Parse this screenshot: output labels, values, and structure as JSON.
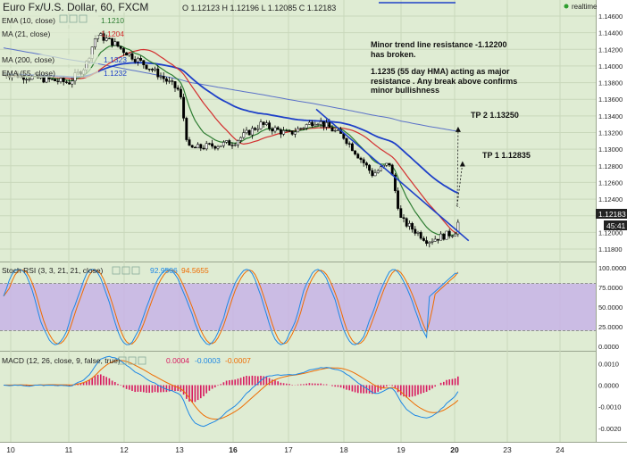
{
  "header": {
    "symbol": "Euro Fx/U.S. Dollar, 60, FXCM",
    "ohlc": "O 1.12123  H 1.12196  L 1.12085  C 1.12183",
    "realtime_label": "realtime"
  },
  "price_panel": {
    "legend": [
      {
        "label": "EMA (10, close)",
        "value": "1.1210",
        "color": "#2e7d32"
      },
      {
        "label": "MA (21, close)",
        "value": "1.1204",
        "color": "#d32f2f"
      },
      {
        "label": "MA (200, close)",
        "value": "1.1323",
        "color": "#1e40c8"
      },
      {
        "label": "EMA (55, close)",
        "value": "1.1232",
        "color": "#1e40c8"
      }
    ],
    "price_labels": [
      "1.14600",
      "1.14400",
      "1.14200",
      "1.14000",
      "1.13800",
      "1.13600",
      "1.13400",
      "1.13200",
      "1.13000",
      "1.12800",
      "1.12600",
      "1.12400",
      "1.12200",
      "1.12000",
      "1.11800"
    ],
    "current_price": "1.12183",
    "countdown": "45:41",
    "annotation_lines": [
      "Minor trend line resistance -1.12200",
      "has broken.",
      "",
      "1.1235 (55 day HMA) acting as major",
      "resistance . Any break above confirms",
      "minor bullishness"
    ],
    "targets": [
      {
        "label": "TP 2 1.13250"
      },
      {
        "label": "TP 1 1.12835"
      }
    ]
  },
  "rsi_panel": {
    "label": "Stoch RSI (3, 3, 21, 21, close)",
    "values": [
      {
        "text": "92.9506",
        "color": "#1e88e5"
      },
      {
        "text": "94.5655",
        "color": "#ef6c00"
      }
    ],
    "axis_labels": [
      "100.0000",
      "75.0000",
      "50.0000",
      "25.0000",
      "0.0000"
    ]
  },
  "macd_panel": {
    "label": "MACD (12, 26, close, 9, false, true)",
    "values": [
      {
        "text": "0.0004",
        "color": "#d81b60"
      },
      {
        "text": "-0.0003",
        "color": "#1e88e5"
      },
      {
        "text": "-0.0007",
        "color": "#ef6c00"
      }
    ],
    "axis_labels": [
      "0.0010",
      "0.0000",
      "-0.0010",
      "-0.0020"
    ]
  },
  "x_axis": {
    "labels": [
      "10",
      "11",
      "12",
      "13",
      "16",
      "17",
      "18",
      "19",
      "20",
      "23",
      "24"
    ],
    "bold": [
      "16",
      "20"
    ]
  },
  "colors": {
    "background": "#dfecd3",
    "bull_candle": "#ffffff",
    "bear_candle": "#000000",
    "ema10": "#2e7d32",
    "ma21": "#d32f2f",
    "ma200": "#5b72c8",
    "ema55": "#1e40c8",
    "stoch_k": "#1e88e5",
    "stoch_d": "#ef6c00",
    "rsi_band": "#c8b4e6",
    "macd_hist": "#d81b60",
    "macd_line": "#1e88e5",
    "signal_line": "#ef6c00"
  },
  "chart_data": {
    "type": "candlestick",
    "title": "Euro Fx/U.S. Dollar, 60, FXCM",
    "x_tick_labels": [
      "10",
      "11",
      "12",
      "13",
      "16",
      "17",
      "18",
      "19",
      "20",
      "23",
      "24"
    ],
    "price_axis": {
      "min": 1.118,
      "max": 1.146,
      "step": 0.002
    },
    "price_path": [
      {
        "x": "10",
        "close": 1.139
      },
      {
        "x": "10.5",
        "close": 1.1385
      },
      {
        "x": "11",
        "close": 1.138
      },
      {
        "x": "11.3",
        "close": 1.14
      },
      {
        "x": "11.5",
        "close": 1.1438
      },
      {
        "x": "11.8",
        "close": 1.1428
      },
      {
        "x": "12",
        "close": 1.1418
      },
      {
        "x": "12.5",
        "close": 1.1396
      },
      {
        "x": "13",
        "close": 1.137
      },
      {
        "x": "13.5",
        "close": 1.13
      },
      {
        "x": "16",
        "close": 1.1308
      },
      {
        "x": "16.5",
        "close": 1.133
      },
      {
        "x": "17",
        "close": 1.1318
      },
      {
        "x": "17.5",
        "close": 1.1335
      },
      {
        "x": "18",
        "close": 1.1315
      },
      {
        "x": "18.5",
        "close": 1.127
      },
      {
        "x": "18.8",
        "close": 1.1283
      },
      {
        "x": "19",
        "close": 1.1215
      },
      {
        "x": "19.5",
        "close": 1.119
      },
      {
        "x": "20",
        "close": 1.12
      },
      {
        "x": "20.3",
        "close": 1.1218
      }
    ],
    "moving_averages": [
      {
        "name": "EMA (10, close)",
        "last": 1.121
      },
      {
        "name": "MA (21, close)",
        "last": 1.1204
      },
      {
        "name": "MA (200, close)",
        "last": 1.1323
      },
      {
        "name": "EMA (55, close)",
        "last": 1.1232
      }
    ],
    "trend_line": {
      "from": {
        "x": "17.5",
        "y": 1.1348
      },
      "to": {
        "x": "20.8",
        "y": 1.119
      }
    },
    "targets": [
      1.1325,
      1.12835
    ],
    "stoch_rsi": {
      "k": 92.9506,
      "d": 94.5655,
      "levels": [
        20,
        80
      ],
      "range": [
        0,
        100
      ]
    },
    "macd": {
      "histogram": 0.0004,
      "macd": -0.0003,
      "signal": -0.0007,
      "range": [
        -0.0025,
        0.0013
      ]
    }
  }
}
